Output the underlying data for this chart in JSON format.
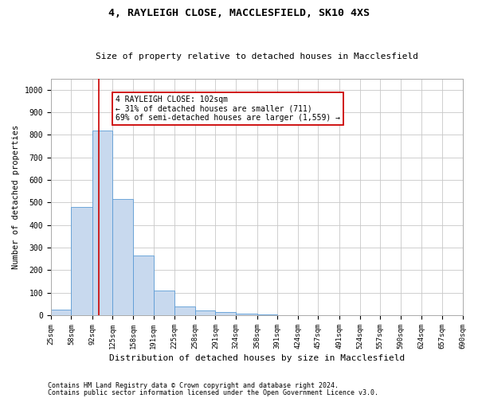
{
  "title1": "4, RAYLEIGH CLOSE, MACCLESFIELD, SK10 4XS",
  "title2": "Size of property relative to detached houses in Macclesfield",
  "xlabel": "Distribution of detached houses by size in Macclesfield",
  "ylabel": "Number of detached properties",
  "bins": [
    25,
    58,
    92,
    125,
    158,
    191,
    225,
    258,
    291,
    324,
    358,
    391,
    424,
    457,
    491,
    524,
    557,
    590,
    624,
    657,
    690
  ],
  "counts": [
    25,
    480,
    820,
    515,
    265,
    110,
    40,
    20,
    15,
    8,
    5,
    2,
    1,
    1,
    0,
    0,
    0,
    0,
    0,
    0
  ],
  "bar_color": "#c8d9ee",
  "bar_edge_color": "#5b9bd5",
  "vline_x": 102,
  "vline_color": "#cc0000",
  "ylim": [
    0,
    1050
  ],
  "yticks": [
    0,
    100,
    200,
    300,
    400,
    500,
    600,
    700,
    800,
    900,
    1000
  ],
  "annotation_text": "4 RAYLEIGH CLOSE: 102sqm\n← 31% of detached houses are smaller (711)\n69% of semi-detached houses are larger (1,559) →",
  "annotation_box_color": "#ffffff",
  "annotation_box_edge": "#cc0000",
  "footer1": "Contains HM Land Registry data © Crown copyright and database right 2024.",
  "footer2": "Contains public sector information licensed under the Open Government Licence v3.0.",
  "bg_color": "#ffffff",
  "grid_color": "#c8c8c8",
  "title1_fontsize": 9.5,
  "title2_fontsize": 8.0,
  "xlabel_fontsize": 8.0,
  "ylabel_fontsize": 7.5,
  "tick_fontsize": 6.5,
  "annot_fontsize": 7.0,
  "footer_fontsize": 6.0
}
